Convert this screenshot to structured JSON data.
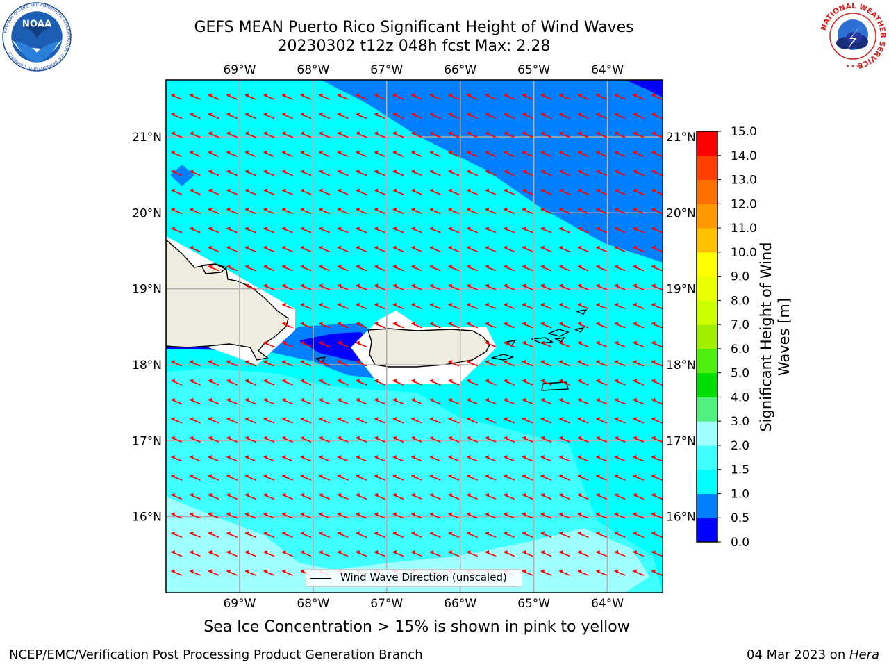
{
  "header": {
    "title_line1": "GEFS MEAN Puerto Rico Significant Height of Wind Waves",
    "title_line2": "20230302 t12z 048h fcst   Max: 2.28"
  },
  "logos": {
    "left": {
      "name": "noaa-logo",
      "text": "NOAA",
      "ring_text": "NATIONAL OCEANIC AND ATMOSPHERIC ADMINISTRATION · U.S. DEPARTMENT OF COMMERCE"
    },
    "right": {
      "name": "nws-logo",
      "ring_text": "NATIONAL WEATHER SERVICE"
    }
  },
  "map": {
    "extent": {
      "lon_min": -70.0,
      "lon_max": -63.25,
      "lat_min": 15.0,
      "lat_max": 21.75
    },
    "lon_ticks": [
      "69°W",
      "68°W",
      "67°W",
      "66°W",
      "65°W",
      "64°W"
    ],
    "lon_tick_values": [
      -69,
      -68,
      -67,
      -66,
      -65,
      -64
    ],
    "lat_ticks": [
      "21°N",
      "20°N",
      "19°N",
      "18°N",
      "17°N",
      "16°N"
    ],
    "lat_tick_values": [
      21,
      20,
      19,
      18,
      17,
      16
    ],
    "gridlines": true,
    "arrow_color": "#ff0000",
    "arrow_direction": "toward northwest",
    "land_color": "#eeeddf",
    "legend_label": "Wind Wave Direction (unscaled)"
  },
  "colorbar": {
    "label": "Significant Height of Wind Waves [m]",
    "ticks": [
      "0.0",
      "0.5",
      "1.0",
      "1.5",
      "2.0",
      "3.0",
      "4.0",
      "5.0",
      "6.0",
      "7.0",
      "8.0",
      "9.0",
      "10.0",
      "11.0",
      "12.0",
      "13.0",
      "14.0",
      "15.0"
    ],
    "colors": [
      "#0000ff",
      "#0080ff",
      "#00ffff",
      "#40ffff",
      "#a0ffff",
      "#50f080",
      "#00dd00",
      "#50ee10",
      "#a0ee00",
      "#ccff00",
      "#e8ff00",
      "#ffff00",
      "#ffc000",
      "#ff9800",
      "#ff7000",
      "#ff4000",
      "#ff0000"
    ]
  },
  "subtitle": "Sea Ice Concentration > 15% is shown in pink to yellow",
  "footer": {
    "left": "NCEP/EMC/Verification Post Processing Product Generation Branch",
    "right_prefix": "04 Mar 2023 on ",
    "right_machine": "Hera"
  }
}
